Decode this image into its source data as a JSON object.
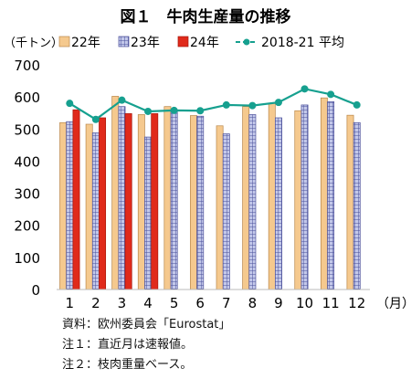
{
  "chart_data": {
    "type": "bar",
    "title": "図１　牛肉生産量の推移",
    "ylabel": "（千トン）",
    "xlabel": "（月）",
    "ylim": [
      0,
      700
    ],
    "yticks": [
      0,
      100,
      200,
      300,
      400,
      500,
      600,
      700
    ],
    "categories": [
      "1",
      "2",
      "3",
      "4",
      "5",
      "6",
      "7",
      "8",
      "9",
      "10",
      "11",
      "12"
    ],
    "legend_position": "top",
    "grid": false,
    "series": [
      {
        "name": "22年",
        "kind": "bar",
        "color": "#F5C98E",
        "pattern": "solid",
        "values": [
          520,
          515,
          602,
          545,
          570,
          542,
          510,
          570,
          580,
          557,
          597,
          543
        ]
      },
      {
        "name": "23年",
        "kind": "bar",
        "color": "#9AA4D6",
        "pattern": "grid",
        "values": [
          523,
          488,
          570,
          475,
          560,
          540,
          485,
          545,
          535,
          575,
          585,
          520
        ]
      },
      {
        "name": "24年",
        "kind": "bar",
        "color": "#E02A1B",
        "pattern": "solid",
        "values": [
          560,
          535,
          548,
          548,
          null,
          null,
          null,
          null,
          null,
          null,
          null,
          null
        ]
      },
      {
        "name": "2018-21 平均",
        "kind": "line",
        "color": "#16A08F",
        "values": [
          580,
          530,
          590,
          555,
          558,
          557,
          575,
          573,
          583,
          625,
          608,
          575
        ]
      }
    ]
  },
  "notes": [
    "資料：欧州委員会「Eurostat」",
    "注１：直近月は速報値。",
    "注２：枝肉重量ベース。"
  ]
}
